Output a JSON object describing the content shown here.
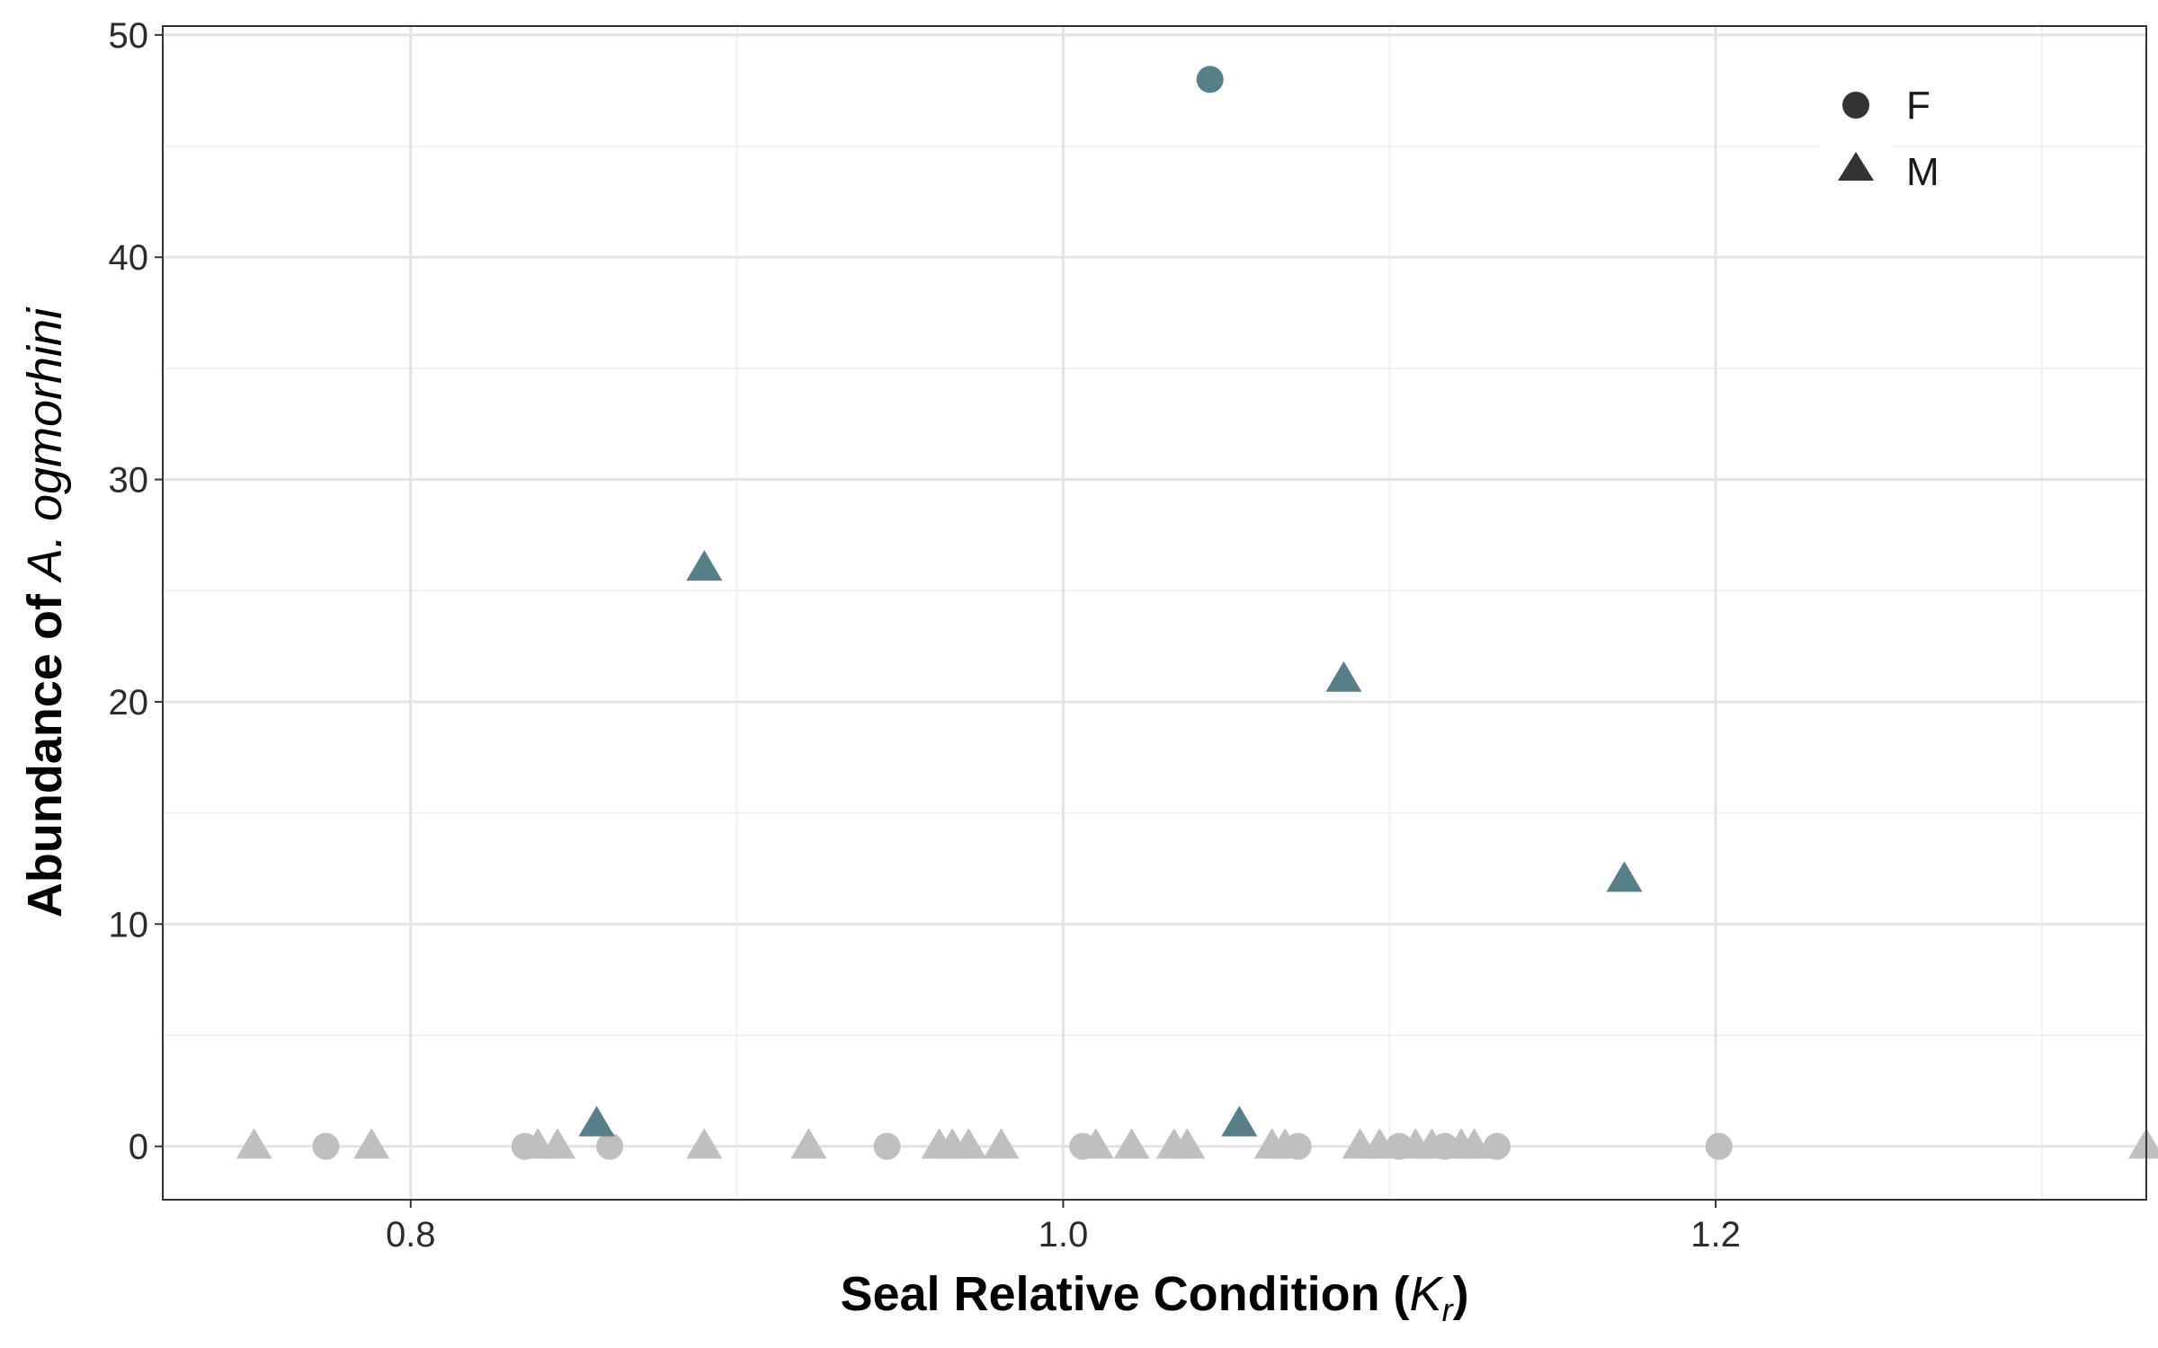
{
  "chart_data": {
    "type": "scatter",
    "title": "",
    "xlabel": {
      "prefix": "Seal Relative Condition (",
      "symbol": "K",
      "subscript": "r",
      "suffix": ")"
    },
    "ylabel": {
      "prefix": "Abundance of ",
      "species": "A. ogmorhini"
    },
    "xlim": [
      0.724,
      1.332
    ],
    "ylim": [
      -2.4,
      50.4
    ],
    "x_ticks": [
      0.8,
      1.0,
      1.2
    ],
    "x_tick_labels": [
      "0.8",
      "1.0",
      "1.2"
    ],
    "y_ticks": [
      0,
      10,
      20,
      30,
      40,
      50
    ],
    "y_tick_labels": [
      "0",
      "10",
      "20",
      "30",
      "40",
      "50"
    ],
    "grid": true,
    "legend_position": "top-right",
    "colors": {
      "infected": "#577f89",
      "uninfected": "#bfbfbf",
      "legend_symbol": "#333333"
    },
    "series": [
      {
        "name": "F",
        "shape": "circle",
        "points": [
          {
            "x": 0.774,
            "y": 0
          },
          {
            "x": 0.835,
            "y": 0
          },
          {
            "x": 0.861,
            "y": 0
          },
          {
            "x": 0.946,
            "y": 0
          },
          {
            "x": 1.006,
            "y": 0
          },
          {
            "x": 1.045,
            "y": 48
          },
          {
            "x": 1.072,
            "y": 0
          },
          {
            "x": 1.103,
            "y": 0
          },
          {
            "x": 1.117,
            "y": 0
          },
          {
            "x": 1.133,
            "y": 0
          },
          {
            "x": 1.201,
            "y": 0
          }
        ]
      },
      {
        "name": "M",
        "shape": "triangle",
        "points": [
          {
            "x": 0.752,
            "y": 0
          },
          {
            "x": 0.788,
            "y": 0
          },
          {
            "x": 0.839,
            "y": 0
          },
          {
            "x": 0.845,
            "y": 0
          },
          {
            "x": 0.857,
            "y": 1
          },
          {
            "x": 0.89,
            "y": 26
          },
          {
            "x": 0.89,
            "y": 0
          },
          {
            "x": 0.922,
            "y": 0
          },
          {
            "x": 0.962,
            "y": 0
          },
          {
            "x": 0.966,
            "y": 0
          },
          {
            "x": 0.971,
            "y": 0
          },
          {
            "x": 0.981,
            "y": 0
          },
          {
            "x": 1.01,
            "y": 0
          },
          {
            "x": 1.021,
            "y": 0
          },
          {
            "x": 1.034,
            "y": 0
          },
          {
            "x": 1.038,
            "y": 0
          },
          {
            "x": 1.054,
            "y": 1
          },
          {
            "x": 1.064,
            "y": 0
          },
          {
            "x": 1.068,
            "y": 0
          },
          {
            "x": 1.086,
            "y": 21
          },
          {
            "x": 1.091,
            "y": 0
          },
          {
            "x": 1.097,
            "y": 0
          },
          {
            "x": 1.108,
            "y": 0
          },
          {
            "x": 1.113,
            "y": 0
          },
          {
            "x": 1.122,
            "y": 0
          },
          {
            "x": 1.126,
            "y": 0
          },
          {
            "x": 1.172,
            "y": 12
          },
          {
            "x": 1.332,
            "y": 0
          }
        ]
      }
    ]
  }
}
